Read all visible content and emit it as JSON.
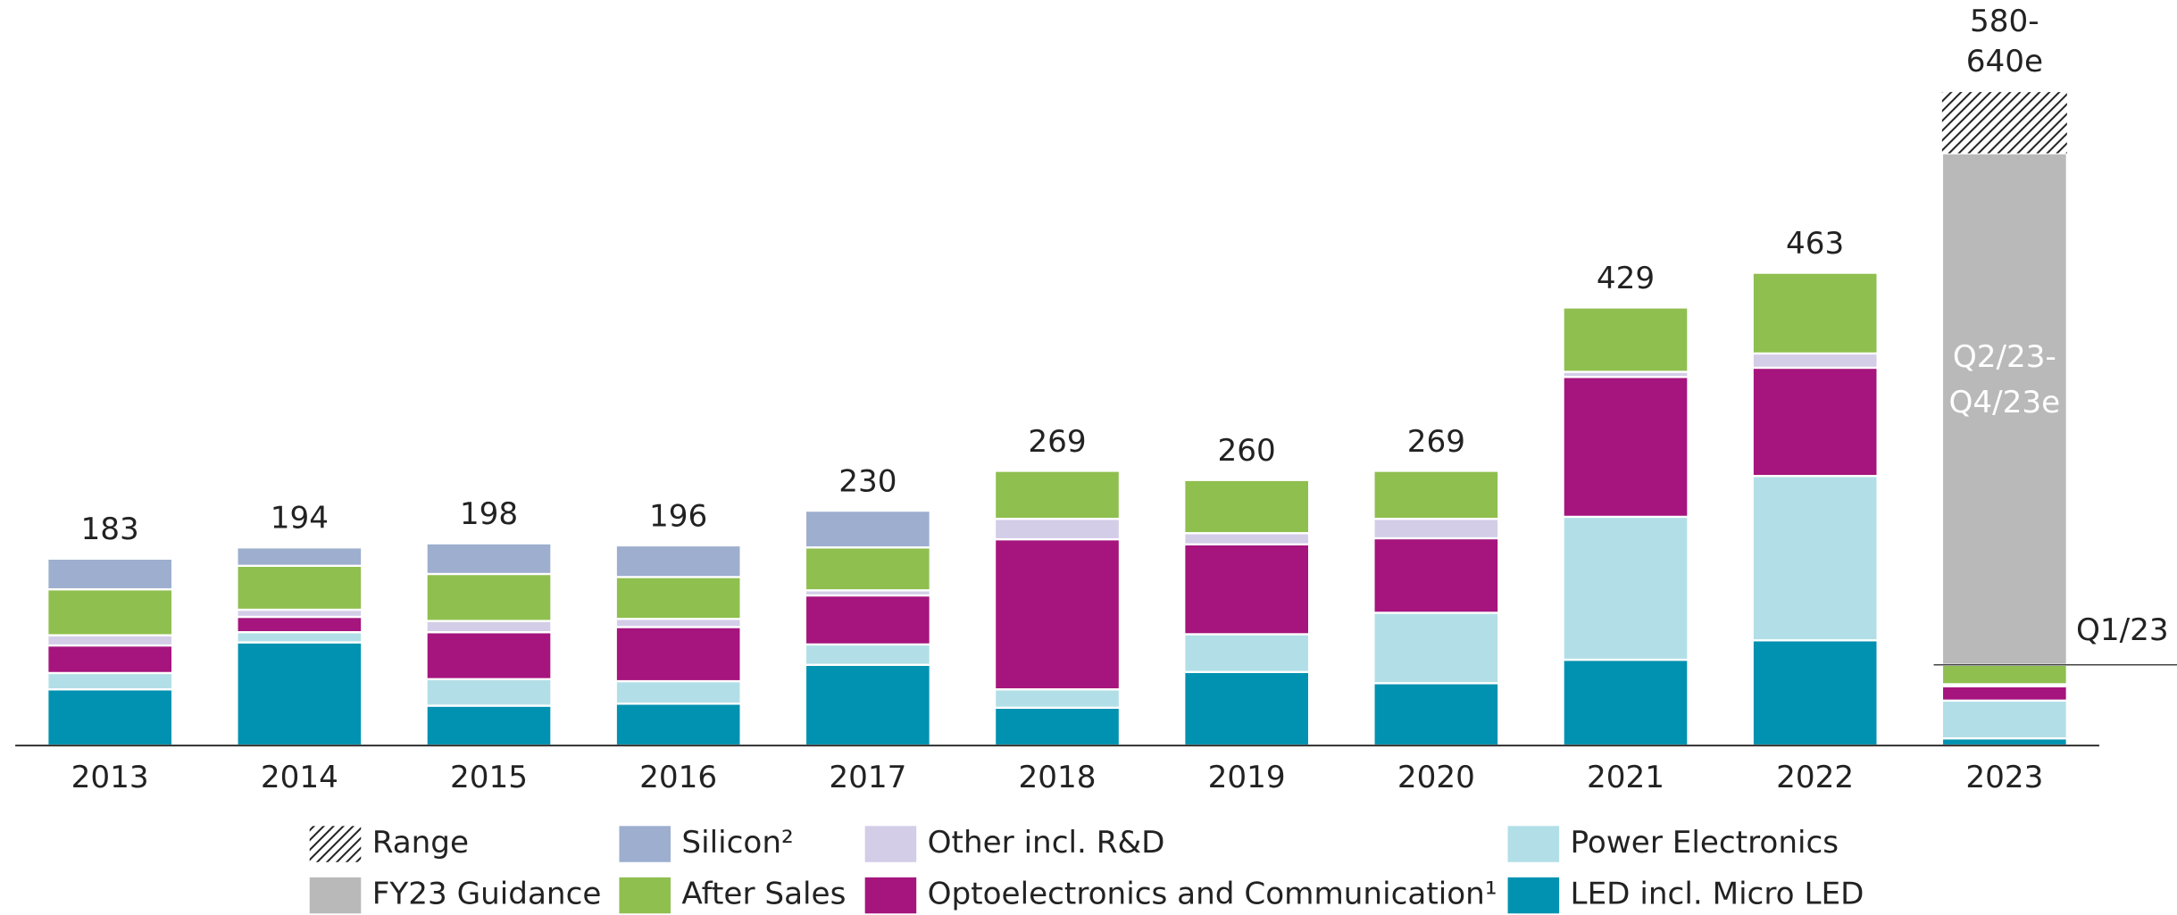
{
  "chart_data": {
    "type": "bar",
    "stacked": true,
    "categories": [
      "2013",
      "2014",
      "2015",
      "2016",
      "2017",
      "2018",
      "2019",
      "2020",
      "2021",
      "2022",
      "2023"
    ],
    "series": [
      {
        "name": "LED incl. Micro LED",
        "color": "#0092b0",
        "values": [
          55,
          101,
          39,
          41,
          79,
          37,
          72,
          61,
          84,
          103,
          7
        ]
      },
      {
        "name": "Power Electronics",
        "color": "#b2dfe7",
        "values": [
          16,
          10,
          26,
          22,
          20,
          18,
          37,
          69,
          140,
          161,
          37
        ]
      },
      {
        "name": "Optoelectronics and Communication¹",
        "color": "#a5157d",
        "values": [
          27,
          15,
          46,
          53,
          48,
          147,
          88,
          73,
          137,
          106,
          14
        ]
      },
      {
        "name": "Other incl. R&D",
        "color": "#d3cde8",
        "values": [
          10,
          7,
          11,
          8,
          5,
          20,
          11,
          19,
          5,
          14,
          2
        ]
      },
      {
        "name": "After Sales",
        "color": "#8fbf4f",
        "values": [
          45,
          43,
          46,
          41,
          42,
          47,
          52,
          47,
          63,
          79,
          19
        ]
      },
      {
        "name": "Silicon²",
        "color": "#9daecf",
        "values": [
          30,
          18,
          30,
          31,
          36,
          null,
          null,
          null,
          null,
          null,
          null
        ]
      },
      {
        "name": "FY23 Guidance",
        "color": "#b9b9b9",
        "values": [
          null,
          null,
          null,
          null,
          null,
          null,
          null,
          null,
          null,
          null,
          501
        ]
      },
      {
        "name": "Range",
        "color": "hatch",
        "values": [
          null,
          null,
          null,
          null,
          null,
          null,
          null,
          null,
          null,
          null,
          60
        ]
      }
    ],
    "totals": [
      183,
      194,
      198,
      196,
      230,
      269,
      260,
      269,
      429,
      463,
      null
    ],
    "annotations": {
      "range_label": [
        "580-",
        "640e"
      ],
      "guidance_label": [
        "Q2/23-",
        "Q4/23e"
      ],
      "q1_label": "Q1/23"
    },
    "legend_order": [
      7,
      6,
      5,
      4,
      3,
      2,
      1,
      0
    ],
    "ylim": [
      0,
      730
    ]
  }
}
